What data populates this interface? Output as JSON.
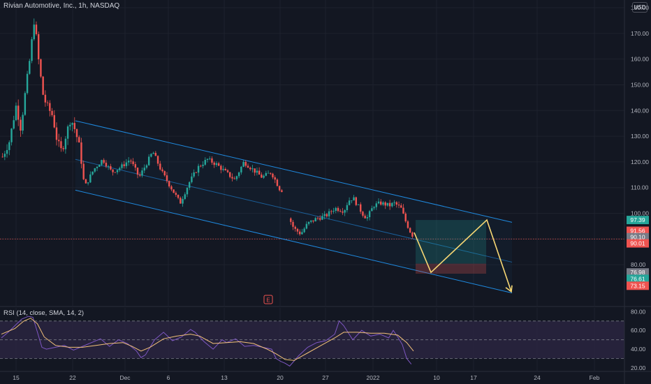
{
  "title": "Rivian Automotive, Inc., 1h, NASDAQ",
  "currency": "USD",
  "rsi_label": "RSI (14, close, SMA, 14, 2)",
  "earnings_marker": "E",
  "colors": {
    "background": "#131722",
    "grid": "#1e222d",
    "up": "#26a69a",
    "down": "#ef5350",
    "channel": "#2196f3",
    "projection": "#f7d774",
    "rsi_line": "#7e57c2",
    "rsi_sma": "#f4c27a",
    "rsi_band": "#2a2440",
    "text": "#b2b5be",
    "last_price_line": "#ef5350"
  },
  "chart_data": [
    {
      "type": "candlestick",
      "title": "Rivian Automotive, Inc., 1h, NASDAQ",
      "x_tick_labels": [
        "15",
        "22",
        "Dec",
        "6",
        "13",
        "20",
        "27",
        "2022",
        "10",
        "17",
        "24",
        "Feb"
      ],
      "y_tick_labels": [
        "80.00",
        "90.00",
        "100.00",
        "110.00",
        "120.00",
        "130.00",
        "140.00",
        "150.00",
        "160.00",
        "170.00",
        "180.00"
      ],
      "ylim": [
        64,
        183
      ],
      "price_path": [
        [
          0,
          122
        ],
        [
          3,
          128
        ],
        [
          6,
          142
        ],
        [
          8,
          133
        ],
        [
          10,
          147
        ],
        [
          12,
          160
        ],
        [
          14,
          176
        ],
        [
          16,
          158
        ],
        [
          18,
          145
        ],
        [
          20,
          141
        ],
        [
          22,
          138
        ],
        [
          24,
          128
        ],
        [
          26,
          124
        ],
        [
          28,
          131
        ],
        [
          30,
          137
        ],
        [
          32,
          132
        ],
        [
          34,
          125
        ],
        [
          36,
          110
        ],
        [
          40,
          117
        ],
        [
          44,
          121
        ],
        [
          48,
          116
        ],
        [
          52,
          118
        ],
        [
          56,
          121
        ],
        [
          60,
          114
        ],
        [
          63,
          119
        ],
        [
          66,
          124
        ],
        [
          70,
          116
        ],
        [
          74,
          110
        ],
        [
          78,
          104
        ],
        [
          82,
          112
        ],
        [
          86,
          118
        ],
        [
          90,
          121
        ],
        [
          94,
          119
        ],
        [
          98,
          116
        ],
        [
          102,
          113
        ],
        [
          106,
          120
        ],
        [
          110,
          117
        ],
        [
          114,
          114
        ],
        [
          118,
          116
        ],
        [
          122,
          109
        ],
        [
          124,
          109
        ],
        [
          126,
          98
        ],
        [
          128,
          94
        ],
        [
          131,
          92
        ],
        [
          134,
          96
        ],
        [
          138,
          98
        ],
        [
          142,
          99
        ],
        [
          146,
          102
        ],
        [
          150,
          101
        ],
        [
          152,
          105
        ],
        [
          154,
          106
        ],
        [
          156,
          103
        ],
        [
          158,
          100
        ],
        [
          160,
          98
        ],
        [
          163,
          103
        ],
        [
          166,
          104
        ],
        [
          170,
          103
        ],
        [
          172,
          104
        ],
        [
          175,
          102
        ],
        [
          177,
          97
        ],
        [
          179,
          93
        ],
        [
          181,
          90
        ]
      ],
      "channel": {
        "upper": [
          [
            29,
            136
          ],
          [
            240,
            96.5
          ]
        ],
        "middle": [
          [
            29,
            121
          ],
          [
            240,
            81
          ]
        ],
        "lower": [
          [
            29,
            109
          ],
          [
            240,
            69
          ]
        ]
      },
      "projection_path": [
        [
          182,
          92.5
        ],
        [
          191,
          77
        ],
        [
          209,
          97.4
        ],
        [
          218,
          69.5
        ]
      ],
      "position": {
        "x_start": 191,
        "x_end": 222,
        "entry": 80.4,
        "target": 97.39,
        "stop": 76.5
      },
      "price_labels": [
        {
          "value": "97.39",
          "price": 97.39,
          "color": "#26a69a"
        },
        {
          "value": "91.56",
          "price": 93.2,
          "color": "#ef5350"
        },
        {
          "value": "90.10",
          "price": 90.7,
          "color": "#787b86"
        },
        {
          "value": "90.01",
          "price": 88.3,
          "color": "#ef5350"
        },
        {
          "value": "76.98",
          "price": 76.98,
          "color": "#787b86"
        },
        {
          "value": "76.61",
          "price": 74.5,
          "color": "#26a69a"
        },
        {
          "value": "73.15",
          "price": 71.8,
          "color": "#ef5350"
        }
      ],
      "last_price": 90.01
    },
    {
      "type": "line",
      "title": "RSI (14, close, SMA, 14, 2)",
      "y_tick_labels": [
        "20.00",
        "40.00",
        "60.00",
        "80.00"
      ],
      "ylim": [
        17,
        84
      ],
      "band": [
        30,
        70
      ],
      "rsi_path": [
        [
          0,
          52
        ],
        [
          3,
          58
        ],
        [
          6,
          65
        ],
        [
          9,
          72
        ],
        [
          12,
          75
        ],
        [
          14,
          74
        ],
        [
          16,
          58
        ],
        [
          18,
          42
        ],
        [
          20,
          40
        ],
        [
          24,
          42
        ],
        [
          28,
          44
        ],
        [
          32,
          39
        ],
        [
          36,
          43
        ],
        [
          40,
          47
        ],
        [
          44,
          51
        ],
        [
          48,
          43
        ],
        [
          52,
          50
        ],
        [
          56,
          46
        ],
        [
          60,
          38
        ],
        [
          62,
          31
        ],
        [
          64,
          34
        ],
        [
          68,
          50
        ],
        [
          72,
          58
        ],
        [
          76,
          49
        ],
        [
          80,
          53
        ],
        [
          84,
          61
        ],
        [
          86,
          58
        ],
        [
          90,
          48
        ],
        [
          94,
          40
        ],
        [
          98,
          50
        ],
        [
          100,
          47
        ],
        [
          104,
          51
        ],
        [
          108,
          43
        ],
        [
          112,
          44
        ],
        [
          116,
          42
        ],
        [
          120,
          40
        ],
        [
          122,
          30
        ],
        [
          124,
          27
        ],
        [
          126,
          25
        ],
        [
          128,
          22
        ],
        [
          132,
          33
        ],
        [
          136,
          42
        ],
        [
          140,
          47
        ],
        [
          144,
          49
        ],
        [
          148,
          56
        ],
        [
          150,
          70
        ],
        [
          152,
          65
        ],
        [
          156,
          50
        ],
        [
          160,
          60
        ],
        [
          164,
          54
        ],
        [
          168,
          56
        ],
        [
          172,
          52
        ],
        [
          174,
          60
        ],
        [
          176,
          53
        ],
        [
          178,
          45
        ],
        [
          180,
          30
        ],
        [
          182,
          24
        ]
      ],
      "sma_path": [
        [
          0,
          56
        ],
        [
          6,
          62
        ],
        [
          10,
          70
        ],
        [
          13,
          73
        ],
        [
          16,
          67
        ],
        [
          19,
          53
        ],
        [
          24,
          44
        ],
        [
          30,
          42
        ],
        [
          36,
          42
        ],
        [
          42,
          44
        ],
        [
          48,
          46
        ],
        [
          54,
          47
        ],
        [
          58,
          43
        ],
        [
          62,
          38
        ],
        [
          66,
          42
        ],
        [
          72,
          51
        ],
        [
          78,
          54
        ],
        [
          84,
          56
        ],
        [
          88,
          54
        ],
        [
          94,
          46
        ],
        [
          100,
          47
        ],
        [
          106,
          48
        ],
        [
          112,
          46
        ],
        [
          118,
          40
        ],
        [
          122,
          35
        ],
        [
          126,
          29
        ],
        [
          130,
          28
        ],
        [
          136,
          36
        ],
        [
          142,
          44
        ],
        [
          148,
          52
        ],
        [
          152,
          58
        ],
        [
          158,
          58
        ],
        [
          164,
          57
        ],
        [
          170,
          57
        ],
        [
          176,
          55
        ],
        [
          180,
          47
        ],
        [
          183,
          38
        ]
      ]
    }
  ]
}
